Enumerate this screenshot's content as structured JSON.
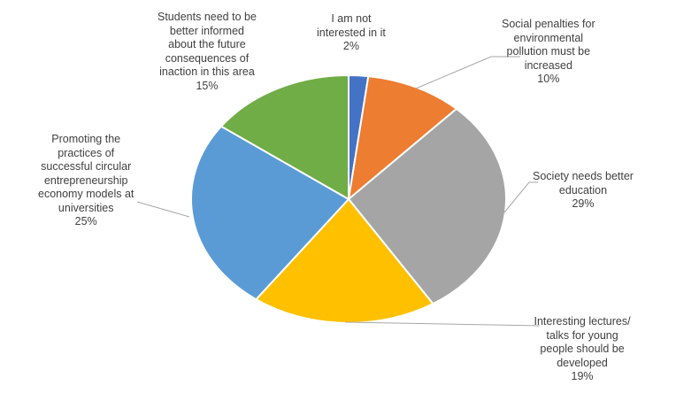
{
  "chart_data": {
    "type": "pie",
    "title": "",
    "start_angle_deg": 0,
    "direction": "clockwise",
    "slices": [
      {
        "label_lines": [
          "I am not",
          "interested in it"
        ],
        "label": "I am not interested in it",
        "value": 2,
        "value_label": "2%",
        "color": "#4472c4"
      },
      {
        "label_lines": [
          "Social penalties for",
          "environmental",
          "pollution must be",
          "increased"
        ],
        "label": "Social penalties for environmental pollution must be increased",
        "value": 10,
        "value_label": "10%",
        "color": "#ed7d31"
      },
      {
        "label_lines": [
          "Society needs better",
          "education"
        ],
        "label": "Society needs better education",
        "value": 29,
        "value_label": "29%",
        "color": "#a5a5a5"
      },
      {
        "label_lines": [
          "Interesting lectures/",
          "talks for young",
          "people should be",
          "developed"
        ],
        "label": "Interesting lectures/ talks for young people should be developed",
        "value": 19,
        "value_label": "19%",
        "color": "#ffc000"
      },
      {
        "label_lines": [
          "Promoting the",
          "practices of",
          "successful circular",
          "entrepreneurship",
          "economy models at",
          "universities"
        ],
        "label": "Promoting the practices of successful circular entrepreneurship economy models at universities",
        "value": 25,
        "value_label": "25%",
        "color": "#5b9bd5"
      },
      {
        "label_lines": [
          "Students need to be",
          "better informed",
          "about the future",
          "consequences of",
          "inaction in this area"
        ],
        "label": "Students need to be better informed about the future consequences of inaction in this area",
        "value": 15,
        "value_label": "15%",
        "color": "#70ad47"
      }
    ]
  }
}
